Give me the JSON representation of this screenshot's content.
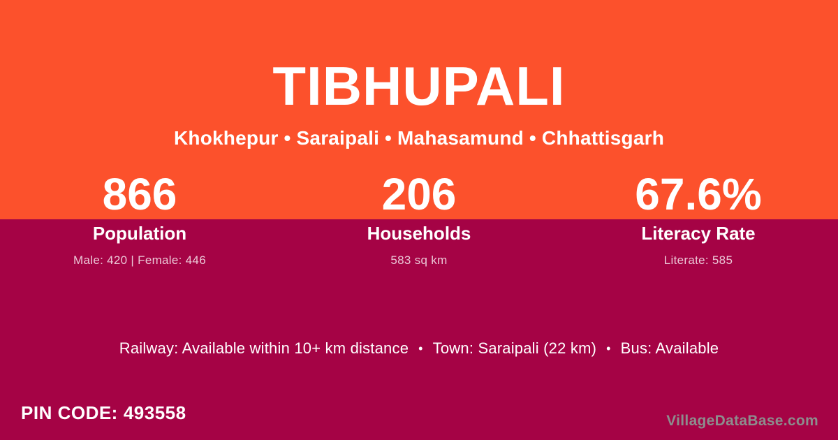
{
  "theme": {
    "header_bg": "#fc512c",
    "body_bg": "#a50345",
    "text_color": "#ffffff",
    "watermark_color": "#8d8d8d"
  },
  "header": {
    "title": "TIBHUPALI",
    "location": "Khokhepur • Saraipali • Mahasamund • Chhattisgarh"
  },
  "stats": [
    {
      "value": "866",
      "label": "Population",
      "detail": "Male: 420 | Female: 446"
    },
    {
      "value": "206",
      "label": "Households",
      "detail": "583 sq km"
    },
    {
      "value": "67.6%",
      "label": "Literacy Rate",
      "detail": "Literate: 585"
    }
  ],
  "transport": {
    "railway": "Railway: Available within 10+ km distance",
    "town": "Town: Saraipali (22 km)",
    "bus": "Bus: Available",
    "separator": "•"
  },
  "pin": {
    "label": "PIN CODE:",
    "value": "493558"
  },
  "watermark": "VillageDataBase.com"
}
